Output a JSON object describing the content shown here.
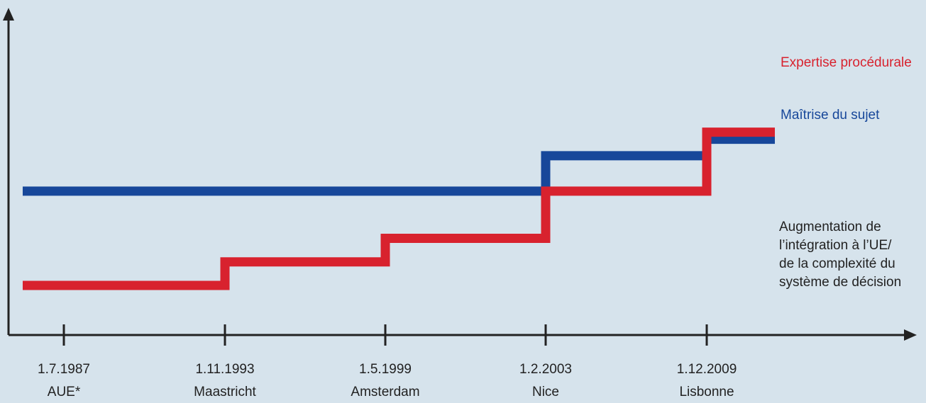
{
  "colors": {
    "background": "#d6e3ec",
    "axis": "#222222",
    "red": "#d8222e",
    "blue": "#17479a"
  },
  "y_axis_label": [
    "Augmentation de",
    "l’intégration à l’UE/",
    "de la complexité du",
    "système de décision"
  ],
  "chart_data": {
    "type": "line",
    "step": true,
    "categories": [
      "1.7.1987",
      "1.11.1993",
      "1.5.1999",
      "1.2.2003",
      "1.12.2009"
    ],
    "category_sublabels": [
      "AUE*",
      "Maastricht",
      "Amsterdam",
      "Nice",
      "Lisbonne"
    ],
    "ylabel": "Augmentation de l’intégration à l’UE/ de la complexité du système de décision",
    "ylim": [
      0,
      10
    ],
    "series": [
      {
        "name": "Expertise procédurale",
        "color": "#d8222e",
        "values": [
          1.5,
          2.5,
          3.5,
          5.5,
          8.0
        ]
      },
      {
        "name": "Maîtrise du sujet",
        "color": "#17479a",
        "values": [
          5.5,
          5.5,
          5.5,
          7.0,
          7.7
        ]
      }
    ]
  }
}
